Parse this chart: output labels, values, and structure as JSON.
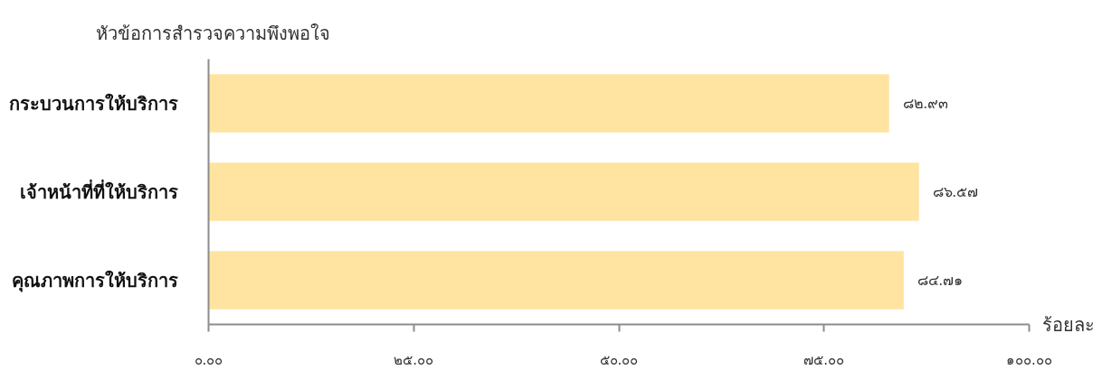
{
  "chart_data": {
    "type": "bar",
    "orientation": "horizontal",
    "ylabel": "หัวข้อการสำรวจความพึงพอใจ",
    "xlabel": "ร้อยละ",
    "categories": [
      "กระบวนการให้บริการ",
      "เจ้าหน้าที่ที่ให้บริการ",
      "คุณภาพการให้บริการ"
    ],
    "values": [
      82.93,
      86.57,
      84.71
    ],
    "color": "#fee4a0",
    "value_labels": [
      "๘๒.๙๓",
      "๘๖.๕๗",
      "๘๔.๗๑"
    ],
    "xlim": [
      0,
      100
    ],
    "xticks": [
      {
        "value": 0,
        "label": "๐.๐๐"
      },
      {
        "value": 25,
        "label": "๒๕.๐๐"
      },
      {
        "value": 50,
        "label": "๕๐.๐๐"
      },
      {
        "value": 75,
        "label": "๗๕.๐๐"
      },
      {
        "value": 100,
        "label": "๑๐๐.๐๐"
      }
    ]
  }
}
